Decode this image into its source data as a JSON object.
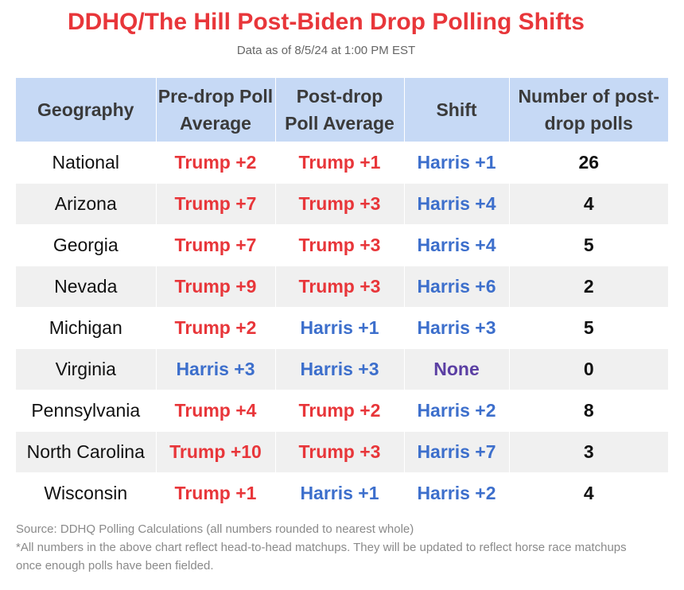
{
  "title": "DDHQ/The Hill Post-Biden Drop Polling Shifts",
  "subtitle": "Data as of 8/5/24 at 1:00 PM EST",
  "colors": {
    "trump": "#e8363a",
    "harris": "#3d6fcc",
    "none": "#5b3fa3",
    "header_bg": "#c6d9f5",
    "row_shade": "#f0f0f0"
  },
  "chart_data": {
    "type": "table",
    "title": "DDHQ/The Hill Post-Biden Drop Polling Shifts",
    "subtitle": "Data as of 8/5/24 at 1:00 PM EST",
    "columns": [
      "Geography",
      "Pre-drop Poll Average",
      "Post-drop Poll Average",
      "Shift",
      "Number of post-drop polls"
    ],
    "rows": [
      {
        "geo": "National",
        "pre": "Trump +2",
        "post": "Trump +1",
        "shift": "Harris +1",
        "polls": "26"
      },
      {
        "geo": "Arizona",
        "pre": "Trump +7",
        "post": "Trump +3",
        "shift": "Harris +4",
        "polls": "4"
      },
      {
        "geo": "Georgia",
        "pre": "Trump +7",
        "post": "Trump +3",
        "shift": "Harris +4",
        "polls": "5"
      },
      {
        "geo": "Nevada",
        "pre": "Trump +9",
        "post": "Trump +3",
        "shift": "Harris +6",
        "polls": "2"
      },
      {
        "geo": "Michigan",
        "pre": "Trump +2",
        "post": "Harris +1",
        "shift": "Harris +3",
        "polls": "5"
      },
      {
        "geo": "Virginia",
        "pre": "Harris +3",
        "post": "Harris +3",
        "shift": "None",
        "polls": "0"
      },
      {
        "geo": "Pennsylvania",
        "pre": "Trump +4",
        "post": "Trump +2",
        "shift": "Harris +2",
        "polls": "8"
      },
      {
        "geo": "North Carolina",
        "pre": "Trump +10",
        "post": "Trump +3",
        "shift": "Harris +7",
        "polls": "3"
      },
      {
        "geo": "Wisconsin",
        "pre": "Trump +1",
        "post": "Harris +1",
        "shift": "Harris +2",
        "polls": "4"
      }
    ]
  },
  "footer": {
    "source": "Source: DDHQ Polling Calculations (all numbers rounded to nearest whole)",
    "note": "*All numbers in the above chart reflect head-to-head matchups. They will be updated to reflect horse race matchups once enough polls have been fielded."
  }
}
